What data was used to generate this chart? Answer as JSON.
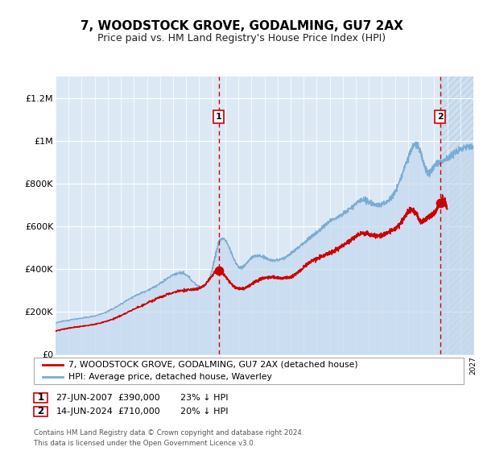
{
  "title": "7, WOODSTOCK GROVE, GODALMING, GU7 2AX",
  "subtitle": "Price paid vs. HM Land Registry's House Price Index (HPI)",
  "ylim": [
    0,
    1300000
  ],
  "yticks": [
    0,
    200000,
    400000,
    600000,
    800000,
    1000000,
    1200000
  ],
  "ytick_labels": [
    "£0",
    "£200K",
    "£400K",
    "£600K",
    "£800K",
    "£1M",
    "£1.2M"
  ],
  "x_start_year": 1995,
  "x_end_year": 2027,
  "sale1_date": 2007.49,
  "sale1_price": 390000,
  "sale1_label": "1",
  "sale2_date": 2024.45,
  "sale2_price": 710000,
  "sale2_label": "2",
  "hpi_fill_color": "#c5d9ee",
  "hpi_line_color": "#7aadd4",
  "sale_color": "#cc0000",
  "background_color": "#dce9f5",
  "legend_line1": "7, WOODSTOCK GROVE, GODALMING, GU7 2AX (detached house)",
  "legend_line2": "HPI: Average price, detached house, Waverley",
  "footer": "Contains HM Land Registry data © Crown copyright and database right 2024.\nThis data is licensed under the Open Government Licence v3.0.",
  "title_fontsize": 11,
  "subtitle_fontsize": 9,
  "tick_fontsize": 8
}
